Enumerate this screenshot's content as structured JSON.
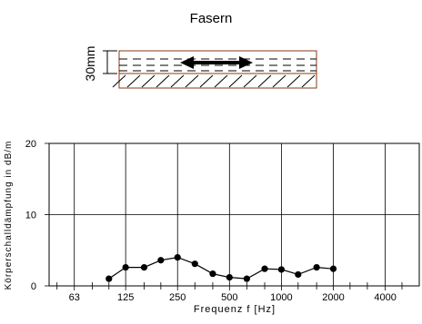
{
  "diagram": {
    "title": "Fasern",
    "thickness_label": "30mm",
    "colors": {
      "layer_outline": "#8a3a1a",
      "line": "#000000"
    }
  },
  "chart_data": {
    "type": "line",
    "title": "",
    "xlabel": "Frequenz f [Hz]",
    "ylabel": "Körperschalldämpfung in dB/m",
    "x_scale": "log2",
    "x_tick_labels": [
      "63",
      "125",
      "250",
      "500",
      "1000",
      "2000",
      "4000"
    ],
    "x_tick_values": [
      63,
      125,
      250,
      500,
      1000,
      2000,
      4000
    ],
    "xlim": [
      45,
      6300
    ],
    "ylim": [
      0,
      20
    ],
    "y_ticks": [
      0,
      10,
      20
    ],
    "grid": true,
    "series": [
      {
        "x": [
          100,
          125,
          160,
          200,
          250,
          315,
          400,
          500,
          630,
          800,
          1000,
          1250,
          1600,
          2000
        ],
        "y": [
          1.0,
          2.6,
          2.6,
          3.6,
          4.0,
          3.1,
          1.7,
          1.2,
          1.0,
          2.4,
          2.3,
          1.6,
          2.6,
          2.4
        ],
        "color": "#000000",
        "marker": "circle"
      }
    ]
  }
}
